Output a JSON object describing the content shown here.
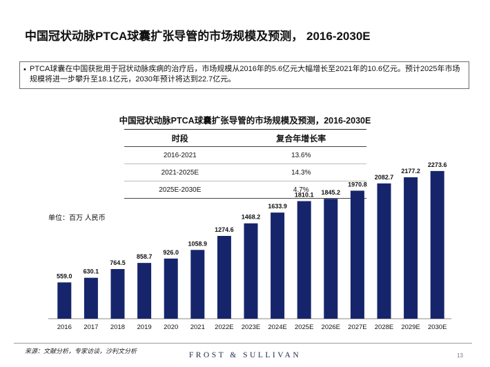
{
  "page": {
    "title": "中国冠状动脉PTCA球囊扩张导管的市场规模及预测， 2016-2030E",
    "summary": "PTCA球囊在中国获批用于冠状动脉疾病的治疗后，市场规模从2016年的5.6亿元大幅增长至2021年的10.6亿元。预计2025年市场规模将进一步攀升至18.1亿元，2030年预计将达到22.7亿元。",
    "bullet": "•",
    "source": "来源：文献分析，专家访谈，沙利文分析",
    "brand": "FROST & SULLIVAN",
    "page_number": "13"
  },
  "cagr_table": {
    "headers": [
      "时段",
      "复合年增长率"
    ],
    "rows": [
      [
        "2016-2021",
        "13.6%"
      ],
      [
        "2021-2025E",
        "14.3%"
      ],
      [
        "2025E-2030E",
        "4.7%"
      ]
    ]
  },
  "chart_data": {
    "type": "bar",
    "title": "中国冠状动脉PTCA球囊扩张导管的市场规模及预测，2016-2030E",
    "unit_label": "单位：百万 人民币",
    "categories": [
      "2016",
      "2017",
      "2018",
      "2019",
      "2020",
      "2021",
      "2022E",
      "2023E",
      "2024E",
      "2025E",
      "2026E",
      "2027E",
      "2028E",
      "2029E",
      "2030E"
    ],
    "values": [
      559.0,
      630.1,
      764.5,
      858.7,
      926.0,
      1058.9,
      1274.6,
      1468.2,
      1633.9,
      1810.1,
      1845.2,
      1970.8,
      2082.7,
      2177.2,
      2273.6
    ],
    "value_labels": [
      "559.0",
      "630.1",
      "764.5",
      "858.7",
      "926.0",
      "1058.9",
      "1274.6",
      "1468.2",
      "1633.9",
      "1810.1",
      "1845.2",
      "1970.8",
      "2082.7",
      "2177.2",
      "2273.6"
    ],
    "ylim": [
      0,
      2400
    ],
    "bar_color": "#16256b",
    "grid": false
  }
}
